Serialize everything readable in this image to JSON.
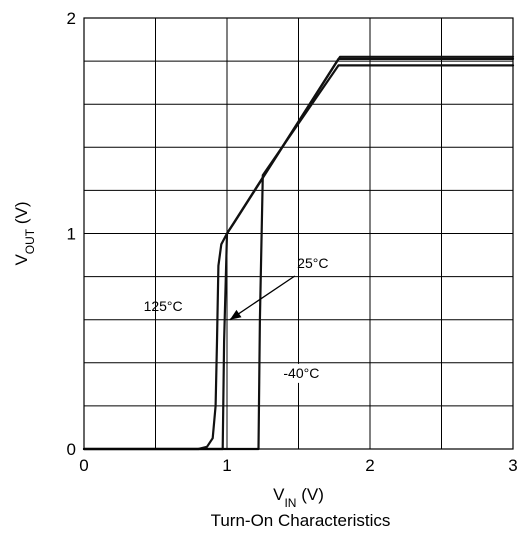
{
  "chart_data": {
    "type": "line",
    "title": "",
    "caption": "Turn-On Characteristics",
    "xlabel": {
      "main": "V",
      "sub": "IN",
      "unit": " (V)"
    },
    "ylabel": {
      "main": "V",
      "sub": "OUT",
      "unit": " (V)"
    },
    "xlim": [
      0,
      3
    ],
    "ylim": [
      0,
      2
    ],
    "xticks": [
      0,
      1,
      2,
      3
    ],
    "xtick_labels": [
      "0",
      "1",
      "2",
      "3"
    ],
    "yticks": [
      0,
      1,
      2
    ],
    "ytick_labels": [
      "0",
      "1",
      "2"
    ],
    "grid": true,
    "grid_x_step": 0.5,
    "grid_y_step": 0.2,
    "series": [
      {
        "name": "125°C",
        "x": [
          0,
          0.8,
          0.86,
          0.9,
          0.92,
          0.93,
          0.94,
          0.96,
          1.0,
          1.78,
          3.0
        ],
        "y": [
          0,
          0,
          0.01,
          0.05,
          0.2,
          0.5,
          0.85,
          0.95,
          1.0,
          1.81,
          1.81
        ]
      },
      {
        "name": "25°C",
        "x": [
          0,
          0.97,
          0.98,
          1.0,
          1.05,
          1.79,
          3.0
        ],
        "y": [
          0,
          0,
          0.5,
          1.0,
          1.05,
          1.82,
          1.82
        ]
      },
      {
        "name": "-40°C",
        "x": [
          0,
          1.22,
          1.23,
          1.25,
          1.78,
          3.0
        ],
        "y": [
          0,
          0,
          0.6,
          1.27,
          1.78,
          1.78
        ]
      }
    ],
    "annotations": [
      {
        "text": "125°C",
        "x": 0.69,
        "y": 0.64
      },
      {
        "text": "25°C",
        "x": 1.6,
        "y": 0.84,
        "arrow_to": [
          1.02,
          0.6
        ]
      },
      {
        "text": "-40°C",
        "x": 1.52,
        "y": 0.33
      }
    ]
  }
}
